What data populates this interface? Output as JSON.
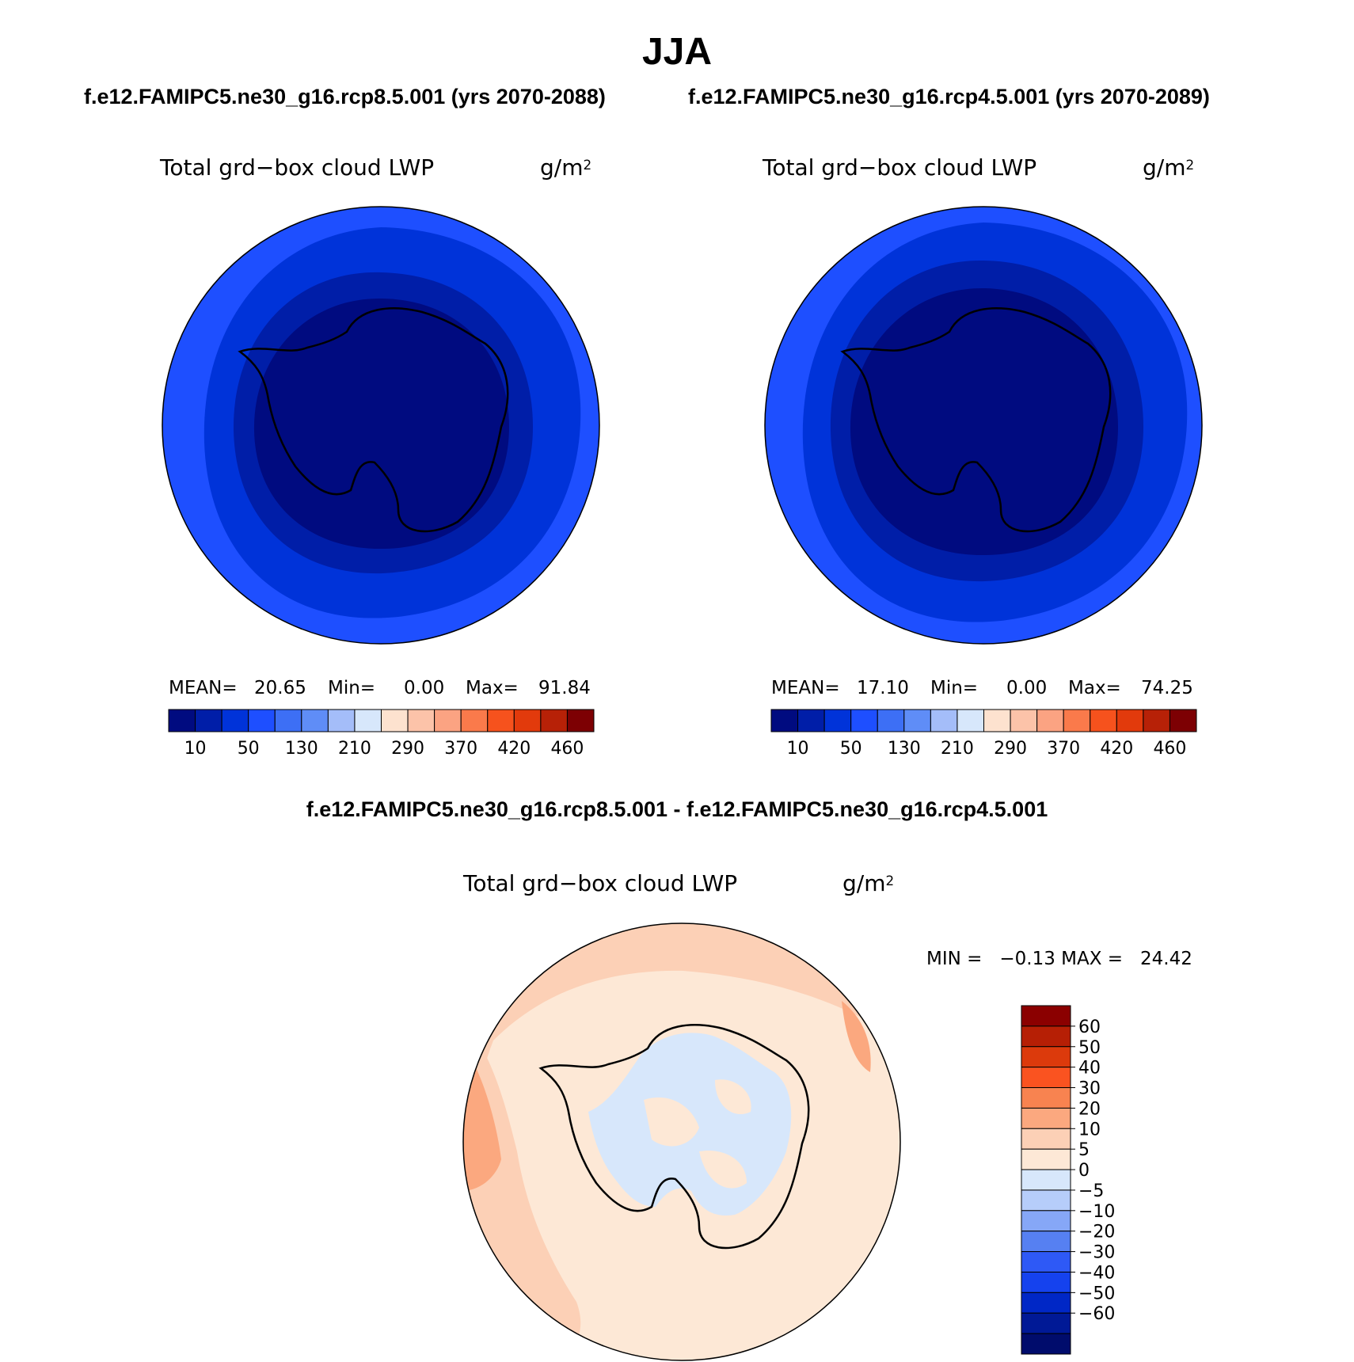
{
  "title": "JJA",
  "panels": [
    {
      "run": "f.e12.FAMIPC5.ne30_g16.rcp8.5.001 (yrs 2070-2088)",
      "variable": "Total grd−box cloud LWP",
      "unit_base": "g/m",
      "unit_exp": "2",
      "stats": {
        "mean_label": "MEAN=",
        "mean": "20.65",
        "min_label": "Min=",
        "min": "0.00",
        "max_label": "Max=",
        "max": "91.84"
      }
    },
    {
      "run": "f.e12.FAMIPC5.ne30_g16.rcp4.5.001 (yrs 2070-2089)",
      "variable": "Total grd−box cloud LWP",
      "unit_base": "g/m",
      "unit_exp": "2",
      "stats": {
        "mean_label": "MEAN=",
        "mean": "17.10",
        "min_label": "Min=",
        "min": "0.00",
        "max_label": "Max=",
        "max": "74.25"
      }
    }
  ],
  "abs_colorbar": {
    "colors": [
      "#000b80",
      "#001ea8",
      "#0033d9",
      "#1e4fff",
      "#3d6ff5",
      "#5f8df7",
      "#a4bdf9",
      "#d7e7fb",
      "#fde2cf",
      "#fcc3a9",
      "#fba382",
      "#fa7a4b",
      "#f6521d",
      "#e23a0c",
      "#b72107",
      "#7d0003"
    ],
    "labels": [
      "10",
      "50",
      "130",
      "210",
      "290",
      "370",
      "420",
      "460"
    ]
  },
  "difference": {
    "title": "f.e12.FAMIPC5.ne30_g16.rcp8.5.001 - f.e12.FAMIPC5.ne30_g16.rcp4.5.001",
    "variable": "Total grd−box cloud LWP",
    "unit_base": "g/m",
    "unit_exp": "2",
    "minmax": "MIN =   −0.13 MAX =   24.42",
    "colorbar": {
      "colors_top_to_bottom": [
        "#8b0000",
        "#b61f05",
        "#dc3a0c",
        "#fa5320",
        "#f88350",
        "#fba87f",
        "#fcd0b6",
        "#fde8d6",
        "#d7e7fb",
        "#b6cdfa",
        "#86a7f7",
        "#5680f2",
        "#2e59f6",
        "#1542ee",
        "#0027c6",
        "#001996",
        "#000c6c"
      ],
      "labels": [
        "60",
        "50",
        "40",
        "30",
        "20",
        "10",
        "5",
        "0",
        "−5",
        "−10",
        "−20",
        "−30",
        "−40",
        "−50",
        "−60"
      ]
    }
  },
  "chart_data": [
    {
      "type": "heatmap",
      "title": "f.e12.FAMIPC5.ne30_g16.rcp8.5.001 (yrs 2070-2088)",
      "variable": "Total grd−box cloud LWP",
      "units": "g/m2",
      "projection": "south polar stereographic",
      "mean": 20.65,
      "min": 0.0,
      "max": 91.84,
      "contour_levels": [
        10,
        20,
        30,
        40,
        50,
        70,
        90,
        110,
        130,
        150,
        170,
        190,
        210,
        230,
        250,
        270,
        290,
        310,
        330,
        350,
        370,
        380,
        390,
        400,
        410,
        420,
        430,
        440,
        450,
        460
      ],
      "colorbar_ticks": [
        10,
        50,
        130,
        210,
        290,
        370,
        420,
        460
      ]
    },
    {
      "type": "heatmap",
      "title": "f.e12.FAMIPC5.ne30_g16.rcp4.5.001 (yrs 2070-2089)",
      "variable": "Total grd−box cloud LWP",
      "units": "g/m2",
      "projection": "south polar stereographic",
      "mean": 17.1,
      "min": 0.0,
      "max": 74.25,
      "colorbar_ticks": [
        10,
        50,
        130,
        210,
        290,
        370,
        420,
        460
      ]
    },
    {
      "type": "heatmap",
      "title": "f.e12.FAMIPC5.ne30_g16.rcp8.5.001 - f.e12.FAMIPC5.ne30_g16.rcp4.5.001",
      "variable": "Total grd−box cloud LWP",
      "units": "g/m2",
      "projection": "south polar stereographic",
      "min": -0.13,
      "max": 24.42,
      "colorbar_ticks": [
        -60,
        -50,
        -40,
        -30,
        -20,
        -10,
        -5,
        0,
        5,
        10,
        20,
        30,
        40,
        50,
        60
      ]
    }
  ]
}
